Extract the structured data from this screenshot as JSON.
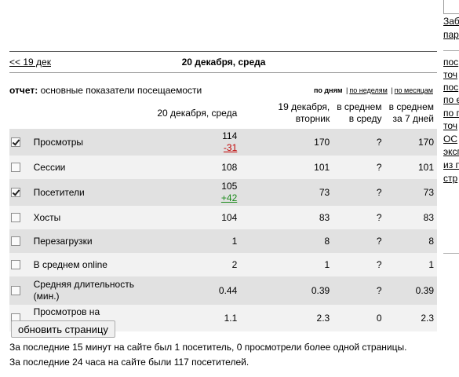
{
  "side": {
    "links": [
      "Заб",
      "пар",
      "пос",
      "точ",
      "пос",
      "по е",
      "по п",
      "точ",
      "ОС",
      "эксп",
      "из п",
      "стр"
    ]
  },
  "nav": {
    "prev_link": "<< 19 дек",
    "date_title": "20 декабря, среда"
  },
  "report": {
    "label": "отчет:",
    "text": "основные показатели посещаемости"
  },
  "period": {
    "by_days": "по дням",
    "by_weeks": "по неделям",
    "by_months": "по месяцам",
    "separator": "|"
  },
  "table": {
    "headers": {
      "today": "20 декабря, среда",
      "yesterday": "19 декабря, вторник",
      "avg_weekday": "в среднем в среду",
      "avg_7days": "в среднем за 7 дней"
    },
    "rows": [
      {
        "label": "Просмотры",
        "checked": true,
        "today": "114",
        "delta": "-31",
        "delta_sign": "neg",
        "yesterday": "170",
        "avg_weekday": "?",
        "avg_7days": "170"
      },
      {
        "label": "Сессии",
        "checked": false,
        "today": "108",
        "delta": "",
        "delta_sign": "",
        "yesterday": "101",
        "avg_weekday": "?",
        "avg_7days": "101"
      },
      {
        "label": "Посетители",
        "checked": true,
        "today": "105",
        "delta": "+42",
        "delta_sign": "pos",
        "yesterday": "73",
        "avg_weekday": "?",
        "avg_7days": "73"
      },
      {
        "label": "Хосты",
        "checked": false,
        "today": "104",
        "delta": "",
        "delta_sign": "",
        "yesterday": "83",
        "avg_weekday": "?",
        "avg_7days": "83"
      },
      {
        "label": "Перезагрузки",
        "checked": false,
        "today": "1",
        "delta": "",
        "delta_sign": "",
        "yesterday": "8",
        "avg_weekday": "?",
        "avg_7days": "8"
      },
      {
        "label": "В среднем online",
        "checked": false,
        "today": "2",
        "delta": "",
        "delta_sign": "",
        "yesterday": "1",
        "avg_weekday": "?",
        "avg_7days": "1"
      },
      {
        "label": "Средняя длительность (мин.)",
        "checked": false,
        "today": "0.44",
        "delta": "",
        "delta_sign": "",
        "yesterday": "0.39",
        "avg_weekday": "?",
        "avg_7days": "0.39"
      },
      {
        "label": "Просмотров на посетителя",
        "checked": false,
        "today": "1.1",
        "delta": "",
        "delta_sign": "",
        "yesterday": "2.3",
        "avg_weekday": "0",
        "avg_7days": "2.3"
      }
    ]
  },
  "refresh_label": "обновить страницу",
  "footer": {
    "line1": "За последние 15 минут на сайте был 1 посетитель, 0 просмотрели более одной страницы.",
    "line2": "За последние 24 часа на сайте были 117 посетителей."
  },
  "colors": {
    "row_odd": "#e1e1e1",
    "row_even": "#f2f2f2",
    "delta_negative": "#c00000",
    "delta_positive": "#1a8a1a"
  }
}
